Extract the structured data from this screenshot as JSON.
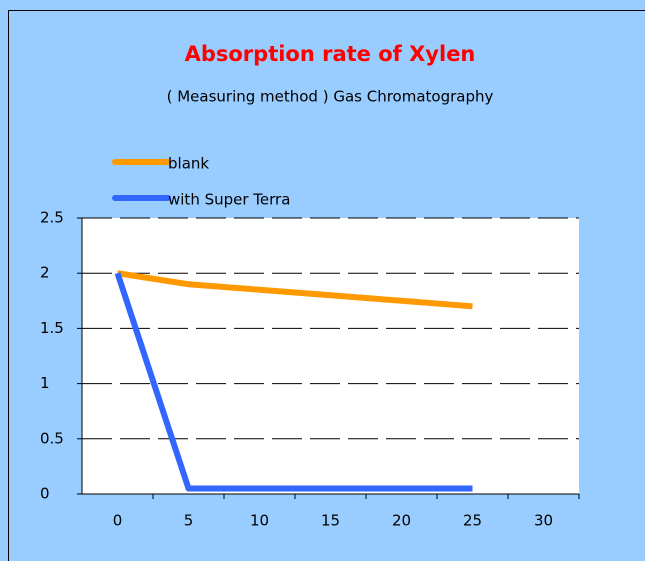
{
  "chart_data": {
    "type": "line",
    "title": "Absorption rate of Xylen",
    "subtitle": "( Measuring method ) Gas Chromatography",
    "categories": [
      "0",
      "5",
      "10",
      "15",
      "20",
      "25",
      "30"
    ],
    "series": [
      {
        "name": "blank",
        "color": "#ff9900",
        "values": [
          2,
          1.9,
          1.85,
          1.8,
          1.75,
          1.7,
          null
        ]
      },
      {
        "name": "with Super Terra",
        "color": "#3366ff",
        "values": [
          2,
          0.05,
          0.05,
          0.05,
          0.05,
          0.05,
          null
        ]
      }
    ],
    "ylim": [
      0,
      2.5
    ],
    "yticks": [
      0,
      0.5,
      1,
      1.5,
      2,
      2.5
    ],
    "grid": true
  }
}
